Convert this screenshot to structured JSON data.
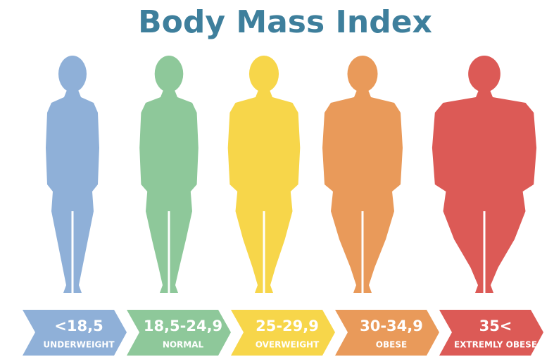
{
  "title": "Body Mass Index",
  "categories": [
    {
      "range": "<18,5",
      "label": "UNDERWEIGHT",
      "color": "#8fb0d8"
    },
    {
      "range": "18,5-24,9",
      "label": "NORMAL",
      "color": "#8ec89a"
    },
    {
      "range": "25-29,9",
      "label": "OVERWEIGHT",
      "color": "#f7d64a"
    },
    {
      "range": "30-34,9",
      "label": "OBESE",
      "color": "#e99a5a"
    },
    {
      "range": "35<",
      "label": "EXTREMLY OBESE",
      "color": "#dc5a56"
    }
  ]
}
